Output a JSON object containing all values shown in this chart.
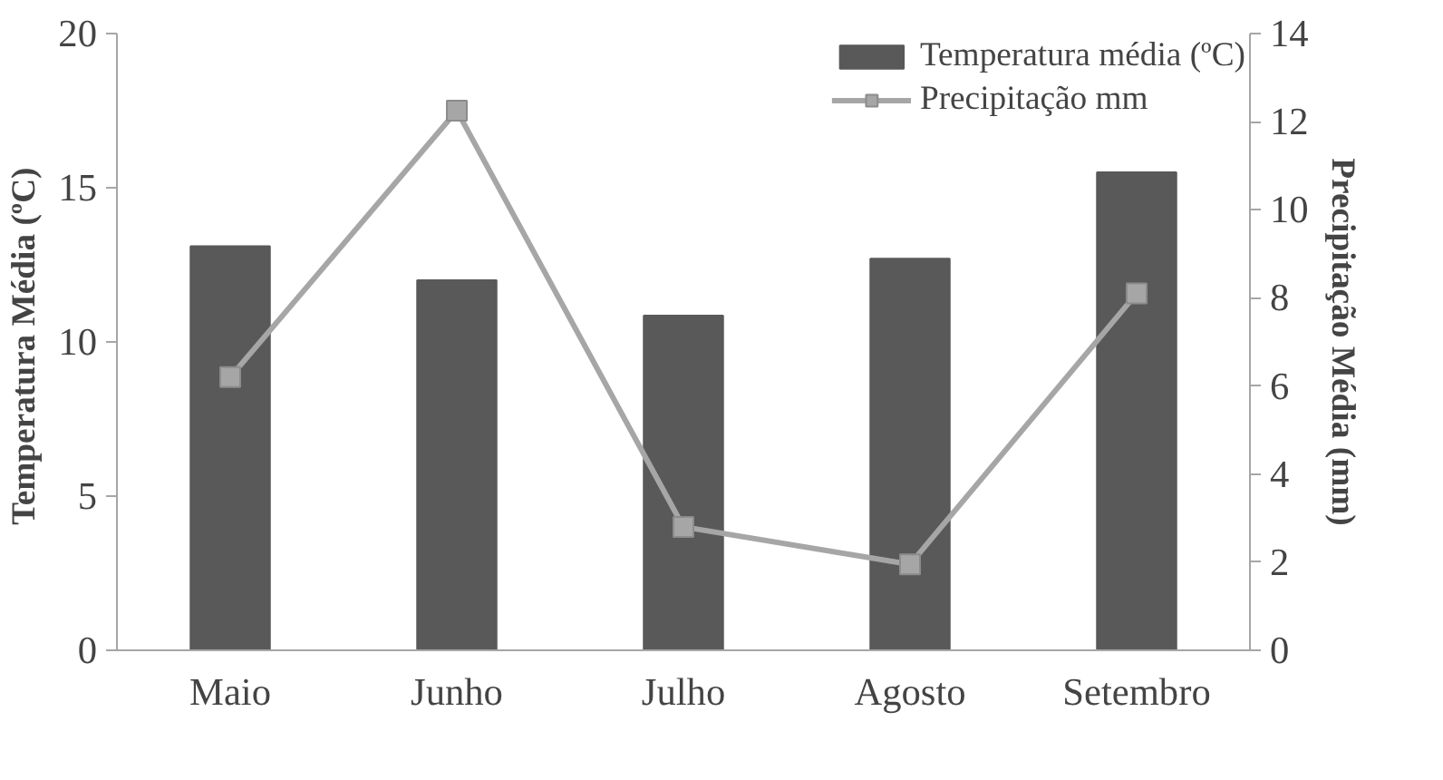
{
  "chart_data": {
    "type": "bar",
    "categories": [
      "Maio",
      "Junho",
      "Julho",
      "Agosto",
      "Setembro"
    ],
    "ylabel": "Temperatura  Média (ºC)",
    "y2label": "Precipitação Média (mm)",
    "ylim": [
      0,
      20
    ],
    "yticks": [
      0,
      5,
      10,
      15,
      20
    ],
    "y2lim": [
      0,
      14
    ],
    "y2ticks": [
      0,
      2,
      4,
      6,
      8,
      10,
      12,
      14
    ],
    "legend": "top right",
    "grid": false,
    "series": [
      {
        "name": "Temperatura média (ºC)",
        "color": "#595959",
        "values": [
          13.1,
          12.0,
          10.85,
          12.7,
          15.5
        ]
      },
      {
        "name": "Precipitação mm",
        "type": "line",
        "axis": "y2",
        "color": "#a6a6a6",
        "marker": "square",
        "values": [
          6.2,
          12.25,
          2.8,
          1.95,
          8.1
        ]
      }
    ]
  }
}
